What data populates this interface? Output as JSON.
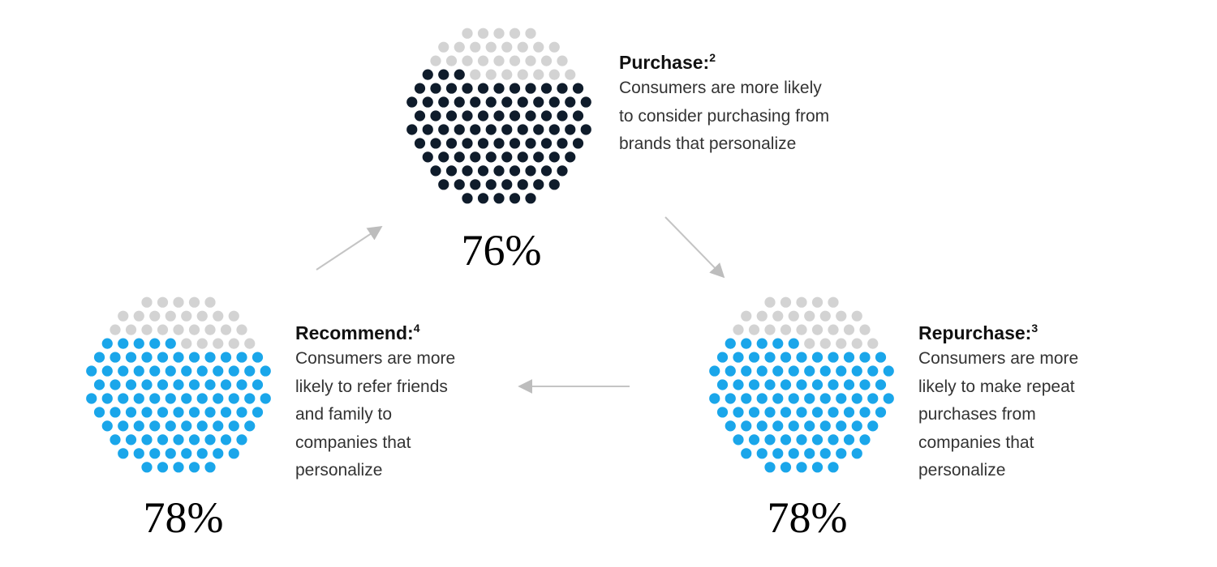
{
  "chart_data": [
    {
      "type": "dot-circle",
      "title": "Purchase:",
      "title_note": "2",
      "text": "Consumers are more likely to consider purchasing from brands that personalize",
      "values": [
        76
      ],
      "value_labels": [
        "76%"
      ],
      "color": "#0f1c2b",
      "empty_color": "#d3d3d3"
    },
    {
      "type": "dot-circle",
      "title": "Repurchase:",
      "title_note": "3",
      "text": "Consumers are more likely to make repeat purchases from companies that personalize",
      "values": [
        78
      ],
      "value_labels": [
        "78%"
      ],
      "color": "#1aa6ea",
      "empty_color": "#d3d3d3"
    },
    {
      "type": "dot-circle",
      "title": "Recommend:",
      "title_note": "4",
      "text": "Consumers are more likely to refer friends and family to companies that personalize",
      "values": [
        78
      ],
      "value_labels": [
        "78%"
      ],
      "color": "#1aa6ea",
      "empty_color": "#d3d3d3"
    }
  ]
}
